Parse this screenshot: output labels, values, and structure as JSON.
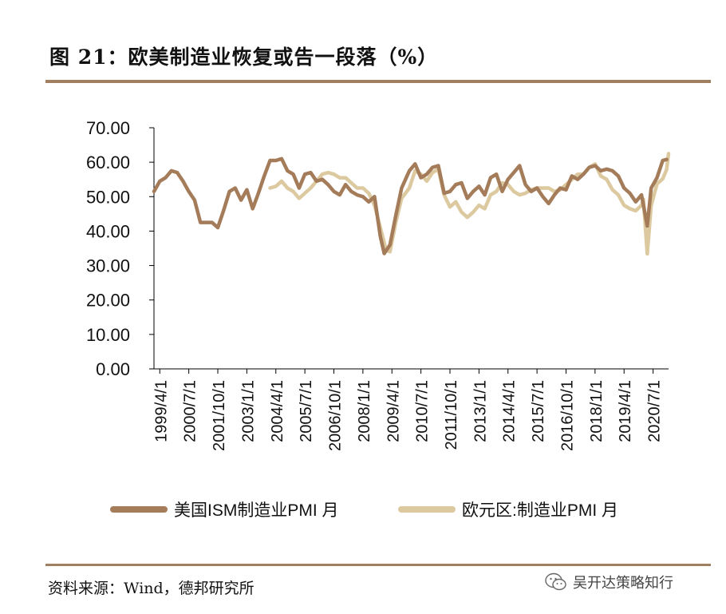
{
  "title": "图 21：欧美制造业恢复或告一段落（%）",
  "source": "资料来源：Wind，德邦研究所",
  "watermark": "吴开达策略知行",
  "colors": {
    "ism": "#a47c5a",
    "euro": "#dcc99f",
    "rule": "#a08060",
    "axis": "#000000"
  },
  "chart_data": {
    "type": "line",
    "title": "",
    "xlabel": "",
    "ylabel": "",
    "ylim": [
      0,
      70
    ],
    "xlim": [
      "1999-01",
      "2021-03"
    ],
    "yticks": [
      "0.00",
      "10.00",
      "20.00",
      "30.00",
      "40.00",
      "50.00",
      "60.00",
      "70.00"
    ],
    "xticks": [
      "1999/4/1",
      "2000/7/1",
      "2001/10/1",
      "2003/1/1",
      "2004/4/1",
      "2005/7/1",
      "2006/10/1",
      "2008/1/1",
      "2009/4/1",
      "2010/7/1",
      "2011/10/1",
      "2013/1/1",
      "2014/4/1",
      "2015/7/1",
      "2016/10/1",
      "2018/1/1",
      "2019/4/1",
      "2020/7/1"
    ],
    "grid": false,
    "legend": "bottom",
    "series": [
      {
        "name": "美国ISM制造业PMI 月",
        "points": [
          [
            "1999-01",
            51.5
          ],
          [
            "1999-04",
            54.5
          ],
          [
            "1999-07",
            55.5
          ],
          [
            "1999-10",
            57.5
          ],
          [
            "2000-01",
            57.0
          ],
          [
            "2000-04",
            54.5
          ],
          [
            "2000-07",
            51.5
          ],
          [
            "2000-10",
            49.0
          ],
          [
            "2001-01",
            42.5
          ],
          [
            "2001-04",
            42.5
          ],
          [
            "2001-07",
            42.5
          ],
          [
            "2001-10",
            41.0
          ],
          [
            "2002-01",
            46.0
          ],
          [
            "2002-04",
            51.5
          ],
          [
            "2002-07",
            52.5
          ],
          [
            "2002-10",
            49.0
          ],
          [
            "2003-01",
            52.0
          ],
          [
            "2003-04",
            46.5
          ],
          [
            "2003-07",
            51.0
          ],
          [
            "2003-10",
            56.0
          ],
          [
            "2004-01",
            60.5
          ],
          [
            "2004-04",
            60.5
          ],
          [
            "2004-07",
            61.0
          ],
          [
            "2004-10",
            57.5
          ],
          [
            "2005-01",
            56.5
          ],
          [
            "2005-04",
            52.5
          ],
          [
            "2005-07",
            56.5
          ],
          [
            "2005-10",
            57.0
          ],
          [
            "2006-01",
            54.5
          ],
          [
            "2006-04",
            55.0
          ],
          [
            "2006-07",
            53.5
          ],
          [
            "2006-10",
            51.5
          ],
          [
            "2007-01",
            50.5
          ],
          [
            "2007-04",
            53.5
          ],
          [
            "2007-07",
            51.5
          ],
          [
            "2007-10",
            50.5
          ],
          [
            "2008-01",
            50.0
          ],
          [
            "2008-04",
            48.5
          ],
          [
            "2008-07",
            50.0
          ],
          [
            "2008-10",
            38.5
          ],
          [
            "2008-12",
            33.5
          ],
          [
            "2009-03",
            36.0
          ],
          [
            "2009-06",
            44.5
          ],
          [
            "2009-09",
            52.5
          ],
          [
            "2010-01",
            57.5
          ],
          [
            "2010-04",
            59.5
          ],
          [
            "2010-07",
            55.5
          ],
          [
            "2010-10",
            56.5
          ],
          [
            "2011-01",
            58.5
          ],
          [
            "2011-04",
            59.0
          ],
          [
            "2011-07",
            51.0
          ],
          [
            "2011-10",
            51.5
          ],
          [
            "2012-01",
            53.5
          ],
          [
            "2012-04",
            54.0
          ],
          [
            "2012-07",
            49.5
          ],
          [
            "2012-10",
            51.5
          ],
          [
            "2013-01",
            53.0
          ],
          [
            "2013-04",
            50.5
          ],
          [
            "2013-07",
            55.5
          ],
          [
            "2013-10",
            56.5
          ],
          [
            "2014-01",
            51.5
          ],
          [
            "2014-04",
            55.0
          ],
          [
            "2014-07",
            57.0
          ],
          [
            "2014-10",
            59.0
          ],
          [
            "2015-01",
            53.5
          ],
          [
            "2015-04",
            51.5
          ],
          [
            "2015-07",
            52.5
          ],
          [
            "2015-10",
            50.0
          ],
          [
            "2016-01",
            48.0
          ],
          [
            "2016-04",
            50.5
          ],
          [
            "2016-07",
            52.5
          ],
          [
            "2016-10",
            52.0
          ],
          [
            "2017-01",
            56.0
          ],
          [
            "2017-04",
            55.0
          ],
          [
            "2017-07",
            56.5
          ],
          [
            "2017-10",
            58.5
          ],
          [
            "2018-01",
            59.0
          ],
          [
            "2018-04",
            57.5
          ],
          [
            "2018-07",
            58.0
          ],
          [
            "2018-10",
            57.5
          ],
          [
            "2019-01",
            56.0
          ],
          [
            "2019-04",
            52.5
          ],
          [
            "2019-07",
            51.0
          ],
          [
            "2019-10",
            48.5
          ],
          [
            "2020-01",
            50.5
          ],
          [
            "2020-04",
            41.5
          ],
          [
            "2020-06",
            52.5
          ],
          [
            "2020-09",
            55.5
          ],
          [
            "2020-12",
            60.5
          ],
          [
            "2021-02",
            60.8
          ]
        ]
      },
      {
        "name": "欧元区:制造业PMI 月",
        "points": [
          [
            "2004-01",
            52.5
          ],
          [
            "2004-04",
            53.0
          ],
          [
            "2004-07",
            54.5
          ],
          [
            "2004-10",
            52.5
          ],
          [
            "2005-01",
            51.5
          ],
          [
            "2005-04",
            49.5
          ],
          [
            "2005-07",
            51.0
          ],
          [
            "2005-10",
            52.5
          ],
          [
            "2006-01",
            54.5
          ],
          [
            "2006-04",
            56.5
          ],
          [
            "2006-07",
            57.0
          ],
          [
            "2006-10",
            56.5
          ],
          [
            "2007-01",
            55.5
          ],
          [
            "2007-04",
            55.5
          ],
          [
            "2007-07",
            54.0
          ],
          [
            "2007-10",
            52.5
          ],
          [
            "2008-01",
            52.5
          ],
          [
            "2008-04",
            51.0
          ],
          [
            "2008-07",
            47.5
          ],
          [
            "2008-10",
            41.0
          ],
          [
            "2009-01",
            34.5
          ],
          [
            "2009-03",
            34.0
          ],
          [
            "2009-06",
            42.5
          ],
          [
            "2009-09",
            49.5
          ],
          [
            "2010-01",
            52.5
          ],
          [
            "2010-04",
            57.5
          ],
          [
            "2010-07",
            56.5
          ],
          [
            "2010-10",
            54.5
          ],
          [
            "2011-01",
            57.0
          ],
          [
            "2011-04",
            58.0
          ],
          [
            "2011-07",
            50.5
          ],
          [
            "2011-10",
            47.0
          ],
          [
            "2012-01",
            48.5
          ],
          [
            "2012-04",
            45.5
          ],
          [
            "2012-07",
            44.0
          ],
          [
            "2012-10",
            45.5
          ],
          [
            "2013-01",
            47.5
          ],
          [
            "2013-04",
            46.5
          ],
          [
            "2013-07",
            50.5
          ],
          [
            "2013-10",
            51.5
          ],
          [
            "2014-01",
            54.0
          ],
          [
            "2014-04",
            53.5
          ],
          [
            "2014-07",
            51.5
          ],
          [
            "2014-10",
            50.5
          ],
          [
            "2015-01",
            51.0
          ],
          [
            "2015-04",
            52.0
          ],
          [
            "2015-07",
            52.5
          ],
          [
            "2015-10",
            52.5
          ],
          [
            "2016-01",
            52.5
          ],
          [
            "2016-04",
            51.5
          ],
          [
            "2016-07",
            52.0
          ],
          [
            "2016-10",
            53.5
          ],
          [
            "2017-01",
            55.0
          ],
          [
            "2017-04",
            56.5
          ],
          [
            "2017-07",
            56.5
          ],
          [
            "2017-10",
            58.5
          ],
          [
            "2018-01",
            59.5
          ],
          [
            "2018-04",
            56.0
          ],
          [
            "2018-07",
            55.0
          ],
          [
            "2018-10",
            52.0
          ],
          [
            "2019-01",
            50.5
          ],
          [
            "2019-04",
            47.5
          ],
          [
            "2019-07",
            46.5
          ],
          [
            "2019-10",
            45.9
          ],
          [
            "2020-01",
            47.5
          ],
          [
            "2020-02",
            49.2
          ],
          [
            "2020-04",
            33.4
          ],
          [
            "2020-06",
            47.4
          ],
          [
            "2020-09",
            53.7
          ],
          [
            "2020-12",
            55.2
          ],
          [
            "2021-02",
            57.9
          ],
          [
            "2021-03",
            62.5
          ]
        ]
      }
    ]
  }
}
